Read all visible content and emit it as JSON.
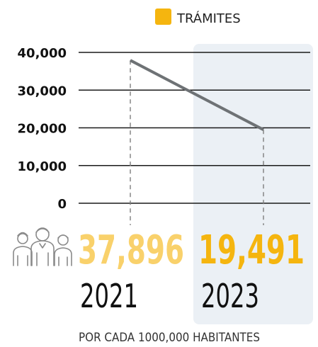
{
  "chart_data": {
    "type": "line",
    "legend": {
      "label": "TRÁMITES",
      "color": "#F5B50F",
      "position": "top-center"
    },
    "categories": [
      "2021",
      "2023"
    ],
    "series": [
      {
        "name": "TRÁMITES",
        "values": [
          37896,
          19491
        ]
      }
    ],
    "data_labels": [
      "37,896",
      "19,491"
    ],
    "data_label_colors": [
      "#F9D16B",
      "#F5B50F"
    ],
    "yticks": [
      {
        "value": 40000,
        "label": "40,000"
      },
      {
        "value": 30000,
        "label": "30,000"
      },
      {
        "value": 20000,
        "label": "20,000"
      },
      {
        "value": 10000,
        "label": "10,000"
      },
      {
        "value": 0,
        "label": "0"
      }
    ],
    "ylim": [
      0,
      40000
    ],
    "grid": true,
    "highlighted_category": "2023",
    "highlight_color": "#EBF0F5",
    "line_color": "#6E7275",
    "footnote": "POR CADA 1000,000 HABITANTES",
    "icon": "people-group-icon"
  }
}
